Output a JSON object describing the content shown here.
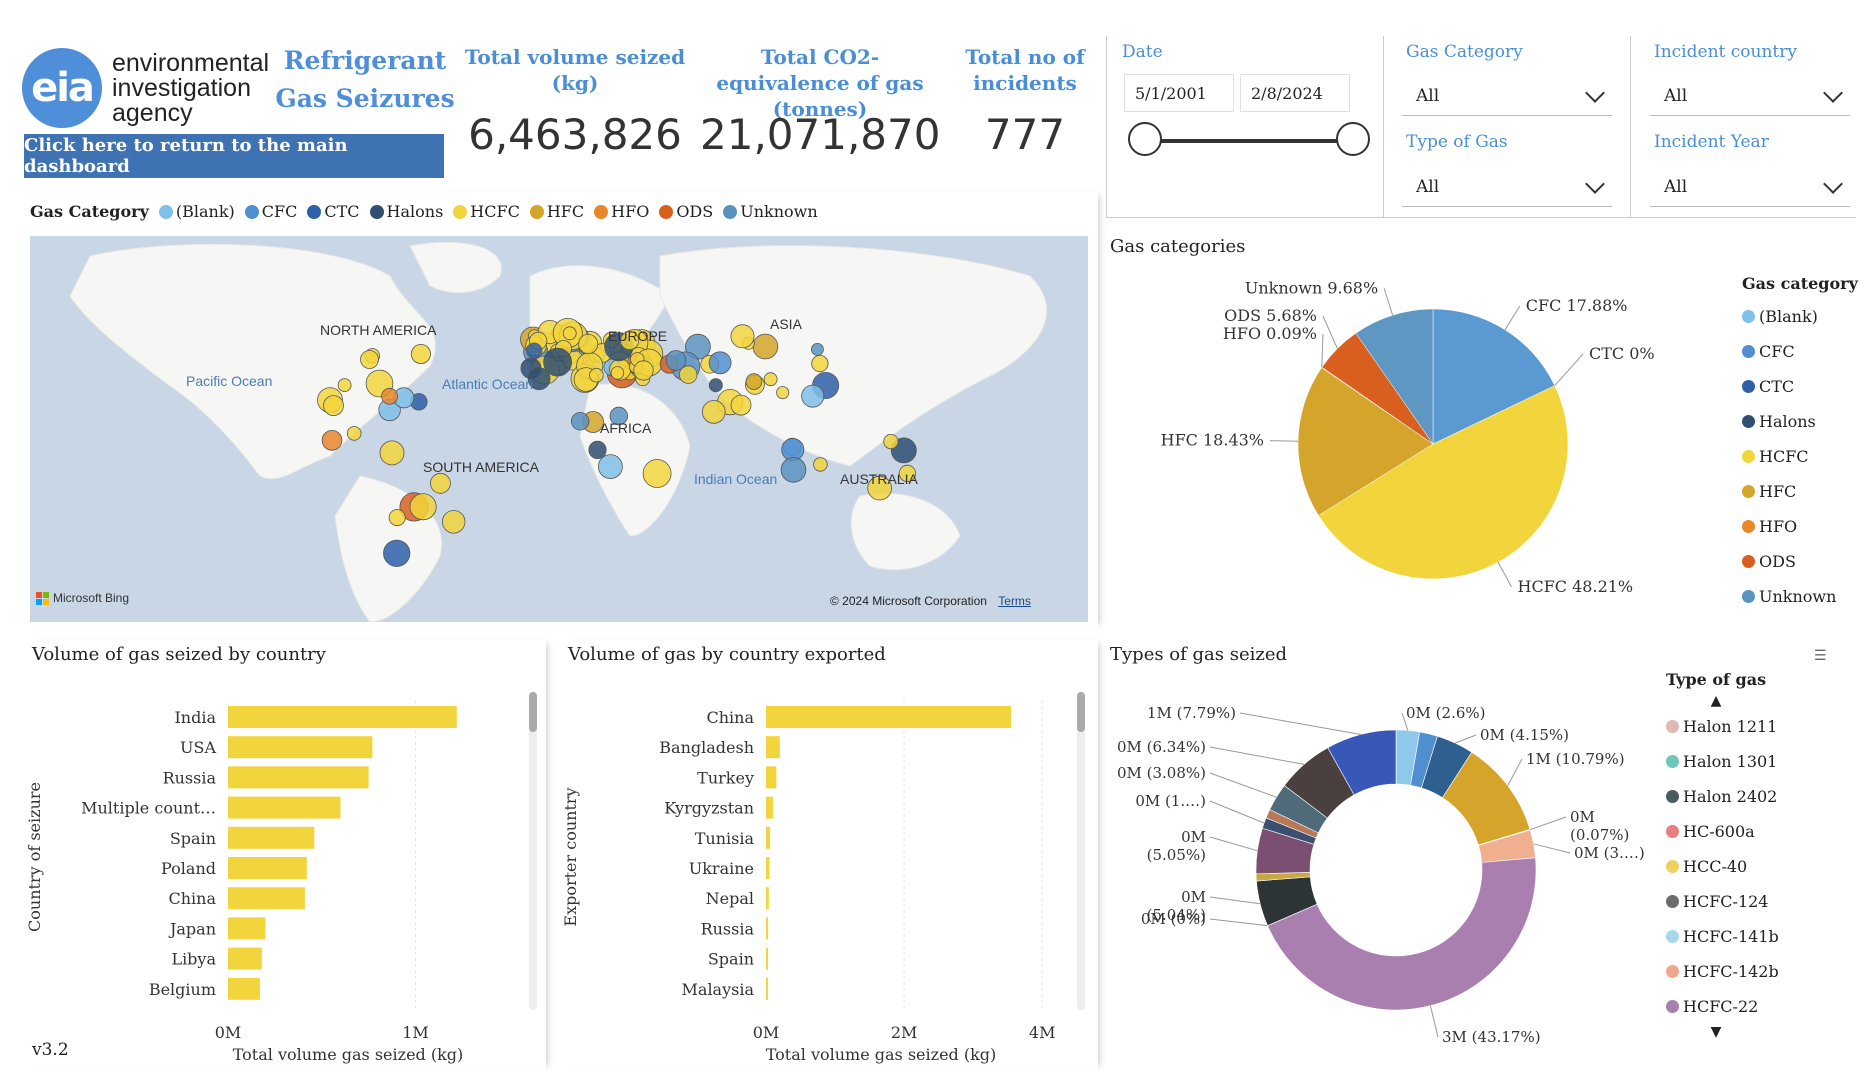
{
  "header": {
    "logo_mark": "eia",
    "logo_lines": [
      "environmental",
      "investigation",
      "agency"
    ],
    "title": "Refrigerant Gas Seizures",
    "return_button": "Click here to return to the main dashboard"
  },
  "kpis": [
    {
      "label": "Total volume seized (kg)",
      "value": "6,463,826"
    },
    {
      "label": "Total CO2-equivalence of gas (tonnes)",
      "value": "21,071,870"
    },
    {
      "label": "Total no of incidents",
      "value": "777"
    }
  ],
  "filters": {
    "date": {
      "label": "Date",
      "start": "5/1/2001",
      "end": "2/8/2024",
      "slider_start": 0.0,
      "slider_end": 1.0
    },
    "gas_category": {
      "label": "Gas Category",
      "value": "All"
    },
    "incident_country": {
      "label": "Incident country",
      "value": "All"
    },
    "type_of_gas": {
      "label": "Type of Gas",
      "value": "All"
    },
    "incident_year": {
      "label": "Incident Year",
      "value": "All"
    }
  },
  "map": {
    "legend_title": "Gas Category",
    "legend": [
      {
        "name": "(Blank)",
        "color": "#7fbfe8"
      },
      {
        "name": "CFC",
        "color": "#4f8fd0"
      },
      {
        "name": "CTC",
        "color": "#2e5fa8"
      },
      {
        "name": "Halons",
        "color": "#2f4f73"
      },
      {
        "name": "HCFC",
        "color": "#f2d53c"
      },
      {
        "name": "HFC",
        "color": "#d4a52a"
      },
      {
        "name": "HFO",
        "color": "#e8862a"
      },
      {
        "name": "ODS",
        "color": "#d95f1e"
      },
      {
        "name": "Unknown",
        "color": "#5a93c0"
      }
    ],
    "labels": [
      "NORTH AMERICA",
      "ASIA",
      "EUROPE",
      "AFRICA",
      "SOUTH AMERICA",
      "AUSTRALIA",
      "Pacific Ocean",
      "Atlantic Ocean",
      "Indian Ocean"
    ],
    "attribution_left": "Microsoft Bing",
    "attribution_right": "© 2024 Microsoft Corporation",
    "terms": "Terms"
  },
  "chart_data": [
    {
      "id": "gas_categories",
      "type": "pie",
      "title": "Gas categories",
      "legend_title": "Gas category",
      "legend": [
        "(Blank)",
        "CFC",
        "CTC",
        "Halons",
        "HCFC",
        "HFC",
        "HFO",
        "ODS",
        "Unknown"
      ],
      "legend_colors": [
        "#7fbfe8",
        "#4f8fd0",
        "#2e5fa8",
        "#2f4f73",
        "#f2d53c",
        "#d4a52a",
        "#e8862a",
        "#d95f1e",
        "#5a93c0"
      ],
      "slices": [
        {
          "name": "CFC",
          "value": 17.88,
          "label": "CFC 17.88%",
          "color": "#5b99d3"
        },
        {
          "name": "CTC",
          "value": 0,
          "label": "CTC 0%",
          "color": "#2e5fa8"
        },
        {
          "name": "HCFC",
          "value": 48.21,
          "label": "HCFC 48.21%",
          "color": "#f2d53c"
        },
        {
          "name": "HFC",
          "value": 18.43,
          "label": "HFC 18.43%",
          "color": "#d4a52a"
        },
        {
          "name": "HFO",
          "value": 0.09,
          "label": "HFO 0.09%",
          "color": "#e8862a"
        },
        {
          "name": "ODS",
          "value": 5.68,
          "label": "ODS 5.68%",
          "color": "#d95f1e"
        },
        {
          "name": "Unknown",
          "value": 9.68,
          "label": "Unknown 9.68%",
          "color": "#5e97c2"
        }
      ]
    },
    {
      "id": "seized_by_country",
      "type": "bar",
      "title": "Volume of gas seized by country",
      "ylabel": "Country of seizure",
      "xlabel": "Total volume gas seized (kg)",
      "categories": [
        "India",
        "USA",
        "Russia",
        "Multiple count…",
        "Spain",
        "Poland",
        "China",
        "Japan",
        "Libya",
        "Belgium"
      ],
      "values": [
        1220000,
        770000,
        750000,
        600000,
        460000,
        420000,
        410000,
        200000,
        180000,
        170000
      ],
      "xticks": [
        "0M",
        "1M"
      ],
      "xtick_values": [
        0,
        1000000
      ],
      "xlim": [
        0,
        1600000
      ],
      "color": "#f2d53c"
    },
    {
      "id": "exported_by_country",
      "type": "bar",
      "title": "Volume of gas by country exported",
      "ylabel": "Exporter country",
      "xlabel": "Total volume gas seized (kg)",
      "categories": [
        "China",
        "Bangladesh",
        "Turkey",
        "Kyrgyzstan",
        "Tunisia",
        "Ukraine",
        "Nepal",
        "Russia",
        "Spain",
        "Malaysia"
      ],
      "values": [
        3550000,
        200000,
        150000,
        100000,
        60000,
        50000,
        40000,
        30000,
        20000,
        15000
      ],
      "xticks": [
        "0M",
        "2M",
        "4M"
      ],
      "xtick_values": [
        0,
        2000000,
        4000000
      ],
      "xlim": [
        0,
        4200000
      ],
      "color": "#f2d53c"
    },
    {
      "id": "types_of_gas",
      "type": "pie",
      "title": "Types of gas seized",
      "legend_title": "Type of gas",
      "legend": [
        "Halon 1211",
        "Halon 1301",
        "Halon 2402",
        "HC-600a",
        "HCC-40",
        "HCFC-124",
        "HCFC-141b",
        "HCFC-142b",
        "HCFC-22"
      ],
      "legend_colors": [
        "#e0b8b4",
        "#6ec6b8",
        "#4a5a5e",
        "#e77f7f",
        "#f0d060",
        "#6b6b6b",
        "#a8d8ec",
        "#f0a88a",
        "#a97fb0"
      ],
      "slices": [
        {
          "value": 2.6,
          "label": "0M (2.6%)",
          "color": "#8ec9ec"
        },
        {
          "value": 2.0,
          "label": "",
          "color": "#4f8fd0"
        },
        {
          "value": 4.15,
          "label": "0M (4.15%)",
          "color": "#2f5f8f"
        },
        {
          "value": 10.79,
          "label": "1M (10.79%)",
          "color": "#d4a52a"
        },
        {
          "value": 0.07,
          "label": "0M\n(0.07%)",
          "color": "#b8c0c8"
        },
        {
          "value": 3.1,
          "label": "0M (3.…)",
          "color": "#f0b090"
        },
        {
          "value": 43.17,
          "label": "3M (43.17%)",
          "color": "#a97fb0"
        },
        {
          "value": 0.01,
          "label": "0M (0%)",
          "color": "#f0d060"
        },
        {
          "value": 5.04,
          "label": "0M\n(5.04%)",
          "color": "#2c3436"
        },
        {
          "value": 0.8,
          "label": "",
          "color": "#c8a840"
        },
        {
          "value": 5.05,
          "label": "0M\n(5.05%)",
          "color": "#7a4f72"
        },
        {
          "value": 1.2,
          "label": "0M (1.…)",
          "color": "#3a5070"
        },
        {
          "value": 1.0,
          "label": "",
          "color": "#b87858"
        },
        {
          "value": 3.08,
          "label": "0M (3.08%)",
          "color": "#4f6a78"
        },
        {
          "value": 6.34,
          "label": "0M (6.34%)",
          "color": "#4a4040"
        },
        {
          "value": 7.79,
          "label": "1M (7.79%)",
          "color": "#3858b8"
        }
      ]
    }
  ],
  "footer": {
    "version": "v3.2"
  }
}
